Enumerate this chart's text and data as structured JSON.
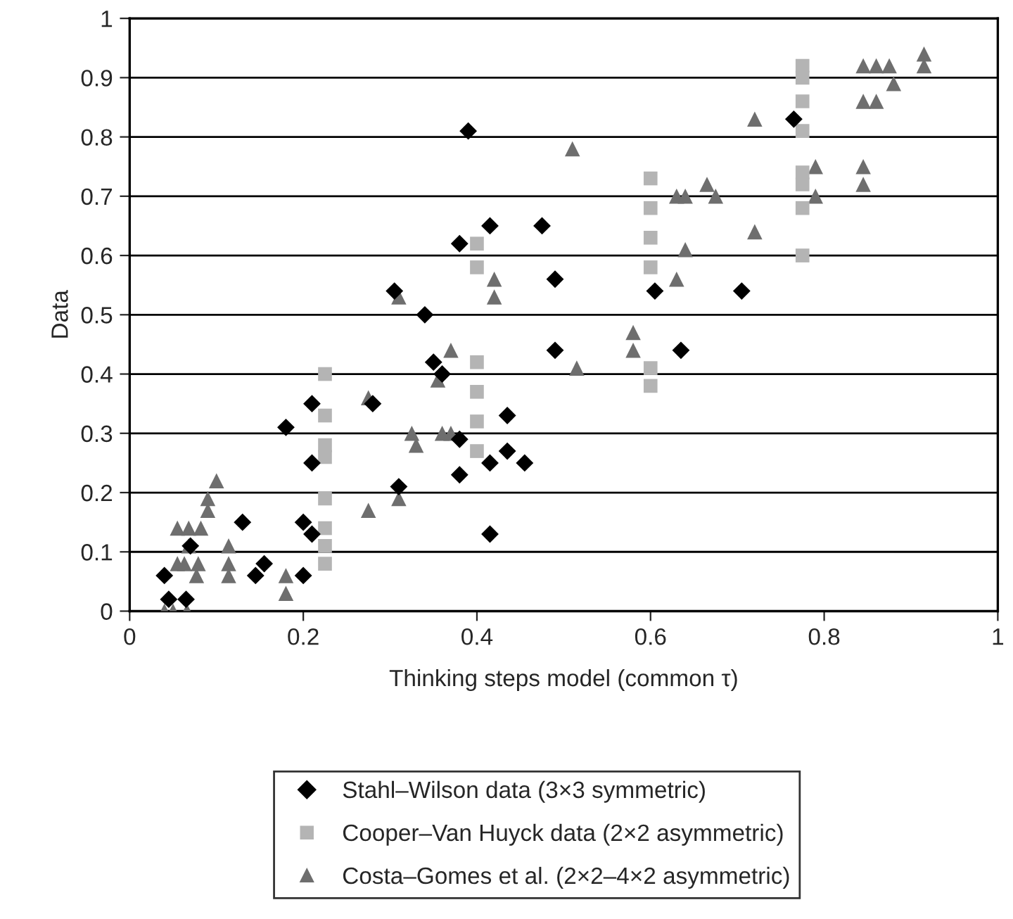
{
  "chart_data": {
    "type": "scatter",
    "xlabel": "Thinking steps model (common τ)",
    "ylabel": "Data",
    "xlim": [
      0,
      1
    ],
    "ylim": [
      0,
      1
    ],
    "xticks": [
      0,
      0.2,
      0.4,
      0.6,
      0.8,
      1
    ],
    "yticks": [
      0,
      0.1,
      0.2,
      0.3,
      0.4,
      0.5,
      0.6,
      0.7,
      0.8,
      0.9,
      1
    ],
    "grid": "y",
    "legend": "bottom",
    "series": [
      {
        "name": "Stahl–Wilson data (3×3 symmetric)",
        "color": "#000000",
        "marker": "diamond",
        "x": [
          0.04,
          0.045,
          0.065,
          0.07,
          0.13,
          0.145,
          0.155,
          0.18,
          0.2,
          0.2,
          0.21,
          0.21,
          0.21,
          0.28,
          0.305,
          0.31,
          0.34,
          0.35,
          0.36,
          0.38,
          0.38,
          0.38,
          0.39,
          0.415,
          0.415,
          0.415,
          0.435,
          0.435,
          0.455,
          0.475,
          0.49,
          0.49,
          0.605,
          0.635,
          0.705,
          0.765
        ],
        "values": [
          0.06,
          0.02,
          0.02,
          0.11,
          0.15,
          0.06,
          0.08,
          0.31,
          0.06,
          0.15,
          0.35,
          0.25,
          0.13,
          0.35,
          0.54,
          0.21,
          0.5,
          0.42,
          0.4,
          0.62,
          0.29,
          0.23,
          0.81,
          0.65,
          0.25,
          0.13,
          0.33,
          0.27,
          0.25,
          0.65,
          0.56,
          0.44,
          0.54,
          0.44,
          0.54,
          0.83
        ]
      },
      {
        "name": "Cooper–Van Huyck data (2×2 asymmetric)",
        "color": "#b4b4b4",
        "marker": "square",
        "x": [
          0.225,
          0.225,
          0.225,
          0.225,
          0.225,
          0.225,
          0.225,
          0.225,
          0.4,
          0.4,
          0.4,
          0.4,
          0.4,
          0.4,
          0.6,
          0.6,
          0.6,
          0.6,
          0.6,
          0.6,
          0.775,
          0.775,
          0.775,
          0.775,
          0.775,
          0.775,
          0.775,
          0.775
        ],
        "values": [
          0.4,
          0.33,
          0.28,
          0.26,
          0.19,
          0.14,
          0.11,
          0.08,
          0.62,
          0.58,
          0.42,
          0.37,
          0.32,
          0.27,
          0.73,
          0.68,
          0.63,
          0.58,
          0.41,
          0.38,
          0.92,
          0.9,
          0.86,
          0.81,
          0.74,
          0.72,
          0.68,
          0.6
        ]
      },
      {
        "name": "Costa–Gomes et al. (2×2–4×2 asymmetric)",
        "color": "#6e6e6e",
        "marker": "triangle",
        "x": [
          0.04,
          0.05,
          0.066,
          0.055,
          0.068,
          0.068,
          0.055,
          0.063,
          0.079,
          0.077,
          0.082,
          0.09,
          0.09,
          0.1,
          0.114,
          0.114,
          0.114,
          0.18,
          0.18,
          0.275,
          0.275,
          0.31,
          0.31,
          0.325,
          0.33,
          0.355,
          0.36,
          0.37,
          0.37,
          0.42,
          0.42,
          0.51,
          0.515,
          0.58,
          0.58,
          0.63,
          0.63,
          0.64,
          0.64,
          0.665,
          0.675,
          0.72,
          0.72,
          0.79,
          0.79,
          0.845,
          0.86,
          0.875,
          0.845,
          0.86,
          0.88,
          0.845,
          0.845,
          0.915,
          0.915
        ],
        "values": [
          0,
          0,
          0,
          0.14,
          0.14,
          0.11,
          0.08,
          0.08,
          0.08,
          0.06,
          0.14,
          0.17,
          0.19,
          0.22,
          0.11,
          0.08,
          0.06,
          0.06,
          0.03,
          0.36,
          0.17,
          0.53,
          0.19,
          0.3,
          0.28,
          0.39,
          0.3,
          0.3,
          0.44,
          0.56,
          0.53,
          0.78,
          0.41,
          0.47,
          0.44,
          0.56,
          0.7,
          0.7,
          0.61,
          0.72,
          0.7,
          0.64,
          0.83,
          0.75,
          0.7,
          0.92,
          0.92,
          0.92,
          0.86,
          0.86,
          0.89,
          0.75,
          0.72,
          0.94,
          0.92
        ]
      }
    ]
  }
}
